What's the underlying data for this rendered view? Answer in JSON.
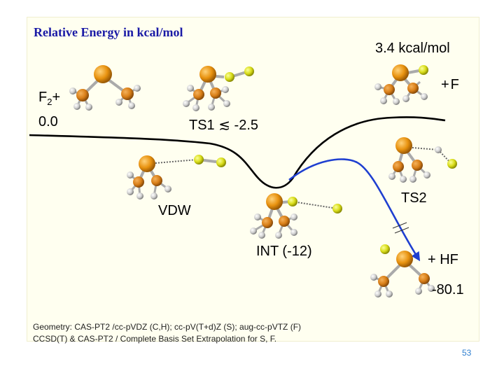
{
  "title": "Relative Energy in kcal/mol",
  "labels": {
    "reactant_species": "F",
    "reactant_sub": "2",
    "reactant_plus": "+",
    "reactant_energy": "0.0",
    "ts1": "TS1 ≲ -2.5",
    "vdw": "VDW",
    "int": "INT (-12)",
    "ts2": "TS2",
    "f_product_energy": "3.4 kcal/mol",
    "f_product": "+F",
    "hf_product": "+ HF",
    "hf_product_energy": "-80.1"
  },
  "footnote": {
    "line1": "Geometry: CAS-PT2 /cc-pVDZ (C,H); cc-pV(T+d)Z (S); aug-cc-pVTZ (F)",
    "line2": "CCSD(T) & CAS-PT2 / Complete Basis Set Extrapolation for S, F."
  },
  "page_number": "53",
  "colors": {
    "title": "#1a1aa6",
    "main_path": "#000000",
    "hf_path": "#1f3fd0",
    "sulfur": "#e8920f",
    "carbon": "#d97f18",
    "hydrogen": "#cfcfcf",
    "fluorine": "#d8dc18",
    "page_number": "#2f7fd0",
    "panel": "#fffff0"
  }
}
